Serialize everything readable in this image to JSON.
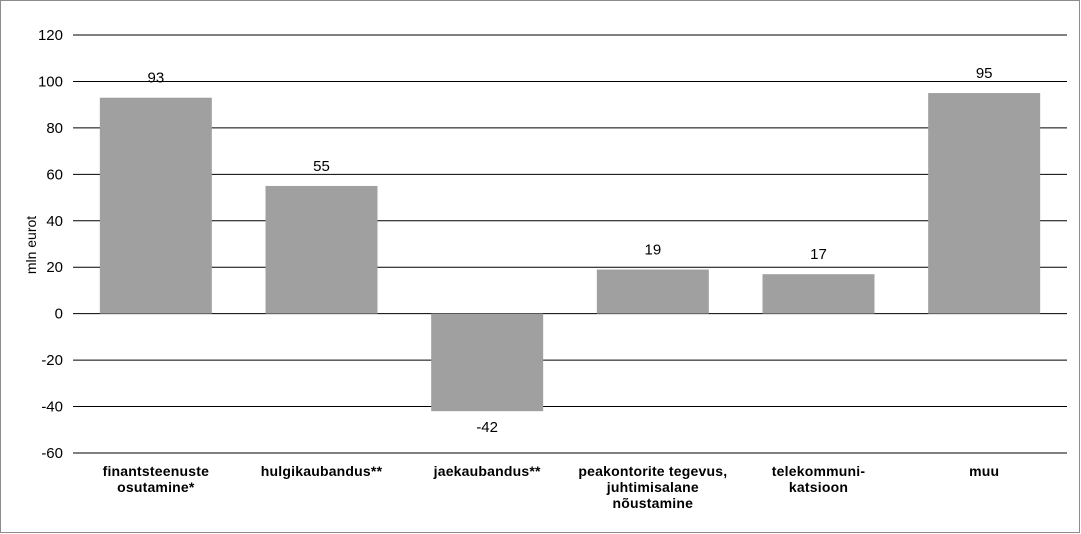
{
  "chart_data": {
    "type": "bar",
    "categories": [
      "finantsteenuste\nosutamine*",
      "hulgikaubandus**",
      "jaekaubandus**",
      "peakontorite tegevus,\njuhtimisalane\nnõustamine",
      "telekommuni-\nkatsioon",
      "muu"
    ],
    "values": [
      93,
      55,
      -42,
      19,
      17,
      95
    ],
    "data_labels": [
      "93",
      "55",
      "-42",
      "19",
      "17",
      "95"
    ],
    "ylabel": "mln eurot",
    "ylim": [
      -60,
      120
    ],
    "yticks": [
      120,
      100,
      80,
      60,
      40,
      20,
      0,
      -20,
      -40,
      -60
    ],
    "grid": true,
    "bar_color": "#a0a0a0",
    "grid_color": "#000000"
  }
}
